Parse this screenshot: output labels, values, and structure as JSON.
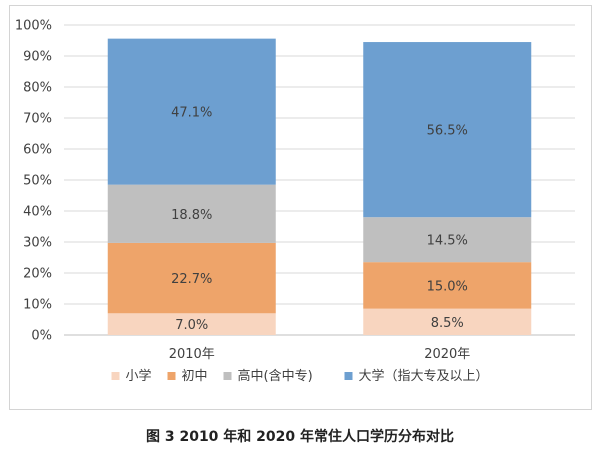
{
  "caption": "图 3 2010 年和 2020 年常住人口学历分布对比",
  "chart_data": {
    "type": "bar",
    "stacked": true,
    "normalized": true,
    "categories": [
      "2010年",
      "2020年"
    ],
    "series": [
      {
        "name": "小学",
        "color": "#f8d5bf",
        "values": [
          7.0,
          8.5
        ],
        "labels": [
          "7.0%",
          "8.5%"
        ]
      },
      {
        "name": "初中",
        "color": "#eea46a",
        "values": [
          22.7,
          15.0
        ],
        "labels": [
          "22.7%",
          "15.0%"
        ]
      },
      {
        "name": "高中(含中专)",
        "color": "#bfbfbf",
        "values": [
          18.8,
          14.5
        ],
        "labels": [
          "18.8%",
          "14.5%"
        ]
      },
      {
        "name": "大学（指大专及以上）",
        "color": "#6d9fd0",
        "values": [
          47.1,
          56.5
        ],
        "labels": [
          "47.1%",
          "56.5%"
        ]
      }
    ],
    "yticks": [
      "0%",
      "10%",
      "20%",
      "30%",
      "40%",
      "50%",
      "60%",
      "70%",
      "80%",
      "90%",
      "100%"
    ],
    "ylim": [
      0,
      100
    ],
    "grid": true,
    "legend_position": "bottom"
  }
}
